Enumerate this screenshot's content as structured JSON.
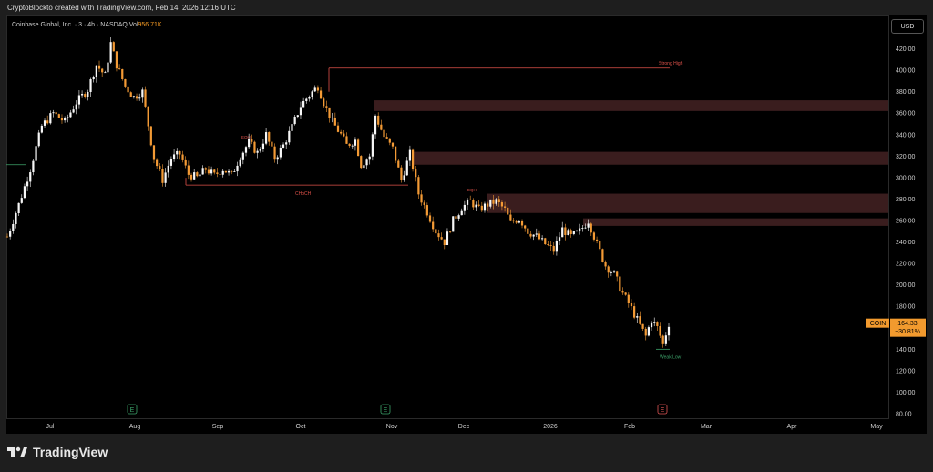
{
  "header": {
    "note": "CryptoBlockto created with TradingView.com, Feb 14, 2026 12:16 UTC"
  },
  "legend": {
    "text": "Coinbase Global, Inc. · 3 · 4h · NASDAQ  Vol",
    "volume": "956.71K"
  },
  "currency_button": "USD",
  "brand": {
    "name": "TradingView"
  },
  "colors": {
    "up": "#f7f7f7",
    "down": "#f39a35",
    "zone": "#3a1d1e",
    "line": "#e0524a",
    "label_red": "#e0524a",
    "label_green": "#3ca36a",
    "price_box": "#f29a2e"
  },
  "current": {
    "symbol": "COIN",
    "price": "164.33",
    "change": "−30.81%"
  },
  "chart_data": {
    "type": "candlestick",
    "title": "",
    "ylim": [
      80,
      440
    ],
    "y_ticks": [
      80,
      100,
      120,
      140,
      160,
      180,
      200,
      220,
      240,
      260,
      280,
      300,
      320,
      340,
      360,
      380,
      400,
      420
    ],
    "x_ticks": [
      "Jul",
      "Aug",
      "Sep",
      "Oct",
      "Nov",
      "Dec",
      "2026",
      "Feb",
      "Mar",
      "Apr",
      "May"
    ],
    "series": {
      "price_path": [
        [
          0,
          245
        ],
        [
          4,
          275
        ],
        [
          8,
          308
        ],
        [
          12,
          348
        ],
        [
          16,
          360
        ],
        [
          20,
          352
        ],
        [
          24,
          370
        ],
        [
          28,
          382
        ],
        [
          31,
          405
        ],
        [
          34,
          395
        ],
        [
          36,
          425
        ],
        [
          38,
          405
        ],
        [
          41,
          385
        ],
        [
          44,
          375
        ],
        [
          47,
          380
        ],
        [
          51,
          318
        ],
        [
          54,
          298
        ],
        [
          57,
          318
        ],
        [
          60,
          322
        ],
        [
          63,
          303
        ],
        [
          66,
          300
        ],
        [
          69,
          308
        ],
        [
          72,
          302
        ],
        [
          75,
          308
        ],
        [
          78,
          302
        ],
        [
          81,
          320
        ],
        [
          84,
          333
        ],
        [
          87,
          323
        ],
        [
          90,
          340
        ],
        [
          93,
          318
        ],
        [
          96,
          330
        ],
        [
          99,
          347
        ],
        [
          102,
          367
        ],
        [
          105,
          377
        ],
        [
          108,
          385
        ],
        [
          110,
          370
        ],
        [
          113,
          352
        ],
        [
          116,
          340
        ],
        [
          118,
          330
        ],
        [
          121,
          335
        ],
        [
          123,
          312
        ],
        [
          126,
          320
        ],
        [
          128,
          358
        ],
        [
          131,
          338
        ],
        [
          134,
          327
        ],
        [
          137,
          298
        ],
        [
          140,
          322
        ],
        [
          143,
          285
        ],
        [
          146,
          268
        ],
        [
          149,
          250
        ],
        [
          152,
          240
        ],
        [
          155,
          260
        ],
        [
          158,
          272
        ],
        [
          161,
          278
        ],
        [
          164,
          270
        ],
        [
          167,
          275
        ],
        [
          170,
          278
        ],
        [
          173,
          270
        ],
        [
          175,
          258
        ],
        [
          178,
          262
        ],
        [
          181,
          250
        ],
        [
          184,
          245
        ],
        [
          187,
          238
        ],
        [
          190,
          232
        ],
        [
          193,
          252
        ],
        [
          196,
          245
        ],
        [
          199,
          250
        ],
        [
          202,
          260
        ],
        [
          205,
          238
        ],
        [
          208,
          218
        ],
        [
          211,
          210
        ],
        [
          214,
          192
        ],
        [
          217,
          178
        ],
        [
          220,
          162
        ],
        [
          222,
          152
        ],
        [
          224,
          168
        ],
        [
          226,
          160
        ],
        [
          228,
          145
        ],
        [
          230,
          164
        ]
      ],
      "candles_hint": "4h candles Jul 2025 – Feb 2026"
    },
    "zones": [
      {
        "from": 362,
        "to": 372
      },
      {
        "from": 312,
        "to": 324
      },
      {
        "from": 267,
        "to": 285
      },
      {
        "from": 255,
        "to": 262
      }
    ],
    "levels": [
      {
        "label": "Strong High",
        "value": 402
      },
      {
        "label": "CHoCH",
        "value": 293
      },
      {
        "label": "",
        "value": 312
      },
      {
        "label": "Weak Low",
        "value": 140
      }
    ],
    "small_labels": [
      "EQH",
      "EQH"
    ],
    "earnings_markers": [
      "E",
      "E",
      "E"
    ]
  }
}
